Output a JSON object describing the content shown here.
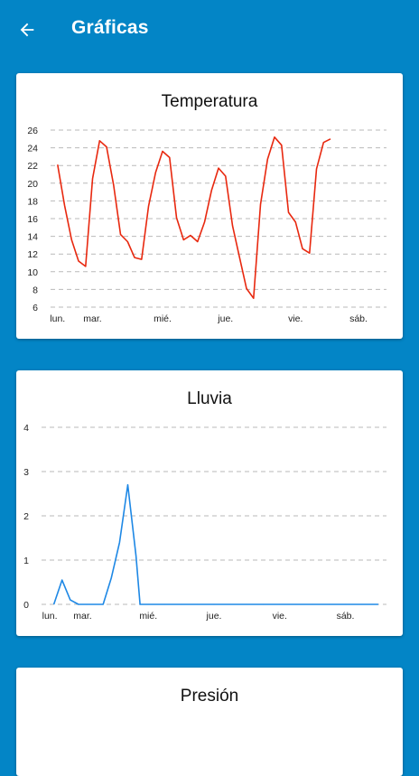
{
  "appbar": {
    "title": "Gráficas",
    "back_icon": "arrow-left-icon"
  },
  "colors": {
    "primary": "#0385c6",
    "temperature_line": "#e8280f",
    "rain_line": "#1e88e5"
  },
  "cards": {
    "temperature": {
      "title": "Temperatura"
    },
    "rain": {
      "title": "Lluvia"
    },
    "pressure": {
      "title": "Presión"
    }
  },
  "chart_data": [
    {
      "type": "line",
      "title": "Temperatura",
      "ylim": [
        6,
        26
      ],
      "y_ticks": [
        6,
        8,
        10,
        12,
        14,
        16,
        18,
        20,
        22,
        24,
        26
      ],
      "x_ticks": [
        {
          "label": "lun.",
          "x": 0
        },
        {
          "label": "mar.",
          "x": 5
        },
        {
          "label": "mié.",
          "x": 15
        },
        {
          "label": "jue.",
          "x": 24
        },
        {
          "label": "vie.",
          "x": 34
        },
        {
          "label": "sáb.",
          "x": 43
        }
      ],
      "x_range": [
        -1,
        47
      ],
      "grid": true,
      "series": [
        {
          "color": "#e8280f",
          "points": [
            [
              0,
              22.1
            ],
            [
              1,
              17.5
            ],
            [
              2,
              13.6
            ],
            [
              3,
              11.2
            ],
            [
              4,
              10.6
            ],
            [
              5,
              20.5
            ],
            [
              6,
              24.8
            ],
            [
              7,
              24.1
            ],
            [
              8,
              19.8
            ],
            [
              9,
              14.2
            ],
            [
              10,
              13.4
            ],
            [
              11,
              11.6
            ],
            [
              12,
              11.4
            ],
            [
              13,
              17.4
            ],
            [
              14,
              21.2
            ],
            [
              15,
              23.6
            ],
            [
              16,
              22.9
            ],
            [
              17,
              16.1
            ],
            [
              18,
              13.6
            ],
            [
              19,
              14.1
            ],
            [
              20,
              13.4
            ],
            [
              21,
              15.6
            ],
            [
              22,
              19.2
            ],
            [
              23,
              21.7
            ],
            [
              24,
              20.8
            ],
            [
              25,
              15.2
            ],
            [
              26,
              11.6
            ],
            [
              27,
              8.1
            ],
            [
              28,
              7.0
            ],
            [
              29,
              17.6
            ],
            [
              30,
              22.7
            ],
            [
              31,
              25.2
            ],
            [
              32,
              24.3
            ],
            [
              33,
              16.7
            ],
            [
              34,
              15.6
            ],
            [
              35,
              12.6
            ],
            [
              36,
              12.1
            ],
            [
              37,
              21.6
            ],
            [
              38,
              24.6
            ],
            [
              39,
              25.0
            ]
          ]
        }
      ]
    },
    {
      "type": "line",
      "title": "Lluvia",
      "ylim": [
        0,
        4
      ],
      "y_ticks": [
        0,
        1,
        2,
        3,
        4
      ],
      "x_ticks": [
        {
          "label": "lun.",
          "x": 0
        },
        {
          "label": "mar.",
          "x": 4
        },
        {
          "label": "mié.",
          "x": 12
        },
        {
          "label": "jue.",
          "x": 20
        },
        {
          "label": "vie.",
          "x": 28
        },
        {
          "label": "sáb.",
          "x": 36
        }
      ],
      "x_range": [
        -1,
        41
      ],
      "grid": true,
      "series": [
        {
          "color": "#1e88e5",
          "points": [
            [
              0.5,
              0
            ],
            [
              1.5,
              0.55
            ],
            [
              2.5,
              0.1
            ],
            [
              3.5,
              0
            ],
            [
              4.5,
              0
            ],
            [
              5.5,
              0
            ],
            [
              6.5,
              0
            ],
            [
              7.5,
              0.6
            ],
            [
              8.5,
              1.4
            ],
            [
              9.5,
              2.7
            ],
            [
              10.5,
              1.1
            ],
            [
              11,
              0
            ],
            [
              12,
              0
            ],
            [
              14,
              0
            ],
            [
              16,
              0
            ],
            [
              18,
              0
            ],
            [
              20,
              0
            ],
            [
              22,
              0
            ],
            [
              24,
              0
            ],
            [
              26,
              0
            ],
            [
              28,
              0
            ],
            [
              30,
              0
            ],
            [
              32,
              0
            ],
            [
              34,
              0
            ],
            [
              36,
              0
            ],
            [
              38,
              0
            ],
            [
              40,
              0
            ]
          ]
        }
      ]
    }
  ]
}
